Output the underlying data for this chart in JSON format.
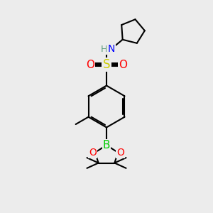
{
  "bg_color": "#ececec",
  "atom_colors": {
    "C": "#000000",
    "H": "#5a9a7a",
    "N": "#0000ff",
    "O": "#ff0000",
    "S": "#cccc00",
    "B": "#00cc00"
  },
  "bond_color": "#000000",
  "bond_width": 1.5,
  "font_size": 9
}
